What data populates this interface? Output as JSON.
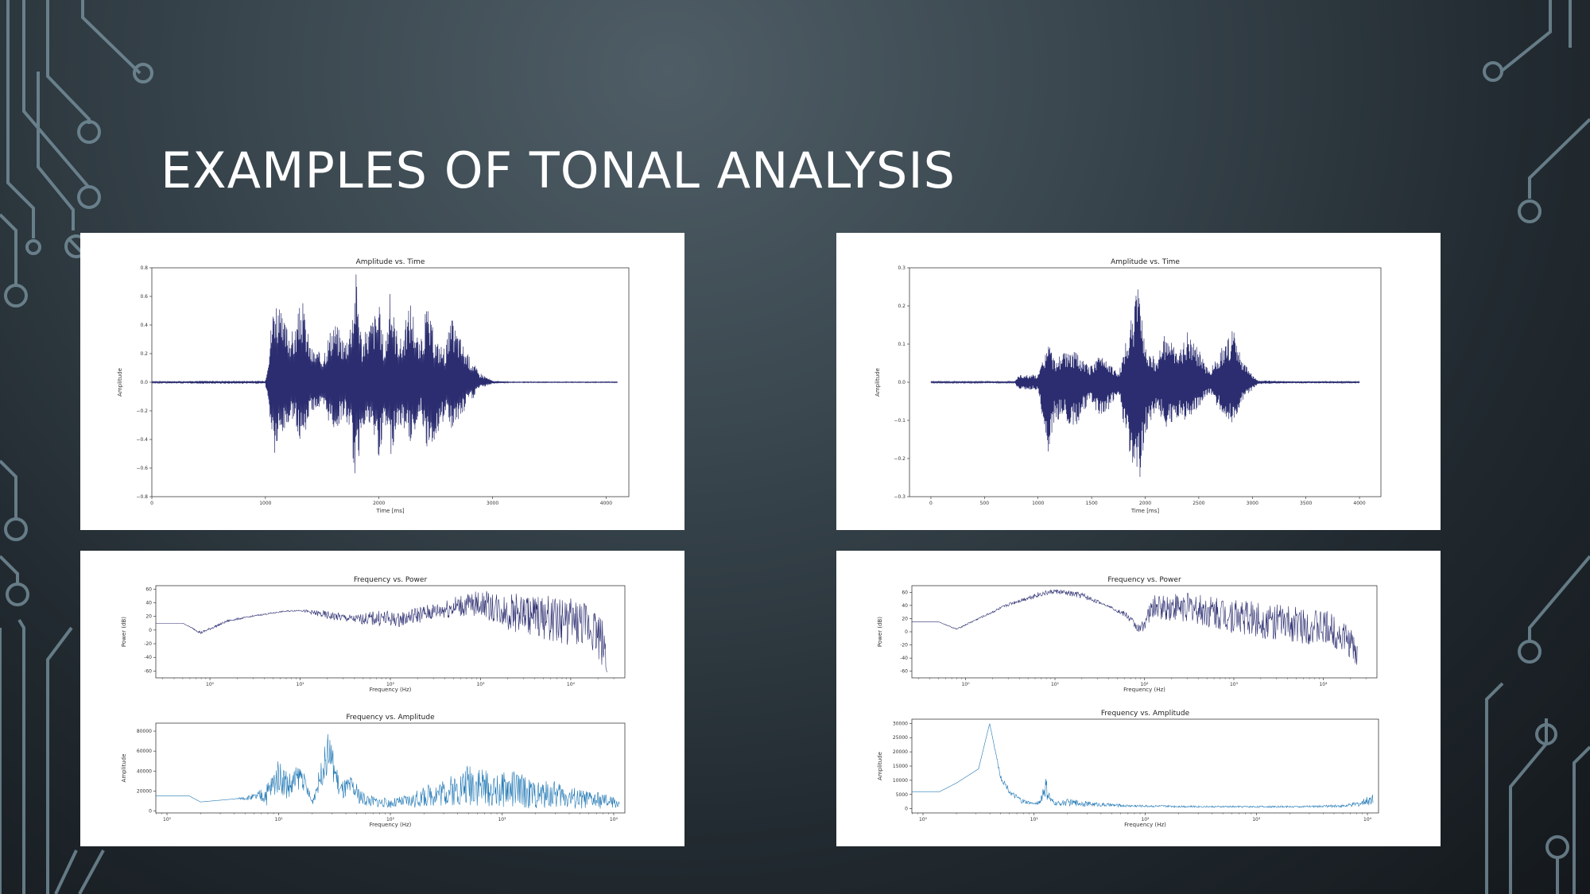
{
  "slide": {
    "title": "EXAMPLES OF TONAL ANALYSIS",
    "accent_color": "#7d98a5",
    "plot_navy": "#2b2d70",
    "plot_blue": "#1f77b4"
  },
  "chart_data": [
    {
      "type": "line",
      "title": "Amplitude vs. Time",
      "xlabel": "Time [ms]",
      "ylabel": "Amplitude",
      "xlim": [
        0,
        4200
      ],
      "ylim": [
        -0.8,
        0.8
      ],
      "xticks": [
        0,
        1000,
        2000,
        3000,
        4000
      ],
      "yticks": [
        -0.8,
        -0.6,
        -0.4,
        -0.2,
        0.0,
        0.2,
        0.4,
        0.6,
        0.8
      ],
      "xtick_labels": [
        "0",
        "1000",
        "2000",
        "3000",
        "4000"
      ],
      "ytick_labels": [
        "−0.8",
        "−0.6",
        "−0.4",
        "−0.2",
        "0.0",
        "0.2",
        "0.4",
        "0.6",
        "0.8"
      ],
      "envelope": {
        "x": [
          0,
          400,
          1000,
          1080,
          1150,
          1250,
          1320,
          1400,
          1500,
          1600,
          1700,
          1750,
          1800,
          1850,
          1930,
          2000,
          2050,
          2100,
          2150,
          2200,
          2280,
          2360,
          2420,
          2500,
          2580,
          2640,
          2700,
          2780,
          2830,
          2870,
          3000,
          3150,
          4100
        ],
        "upper": [
          0.005,
          0.01,
          0.01,
          0.65,
          0.45,
          0.35,
          0.6,
          0.25,
          0.2,
          0.45,
          0.3,
          0.45,
          0.8,
          0.3,
          0.45,
          0.55,
          0.25,
          0.65,
          0.4,
          0.3,
          0.6,
          0.25,
          0.55,
          0.3,
          0.25,
          0.45,
          0.35,
          0.2,
          0.15,
          0.08,
          0.01,
          0.003,
          0.003
        ],
        "lower": [
          -0.005,
          -0.01,
          -0.01,
          -0.55,
          -0.4,
          -0.25,
          -0.45,
          -0.2,
          -0.2,
          -0.35,
          -0.25,
          -0.35,
          -0.8,
          -0.3,
          -0.35,
          -0.55,
          -0.25,
          -0.55,
          -0.35,
          -0.3,
          -0.45,
          -0.2,
          -0.45,
          -0.4,
          -0.25,
          -0.35,
          -0.3,
          -0.15,
          -0.12,
          -0.05,
          -0.01,
          -0.003,
          -0.003
        ]
      }
    },
    {
      "type": "line",
      "title": "Amplitude vs. Time",
      "xlabel": "Time [ms]",
      "ylabel": "Amplitude",
      "xlim": [
        -200,
        4200
      ],
      "ylim": [
        -0.3,
        0.3
      ],
      "xticks": [
        0,
        500,
        1000,
        1500,
        2000,
        2500,
        3000,
        3500,
        4000
      ],
      "yticks": [
        -0.3,
        -0.2,
        -0.1,
        0.0,
        0.1,
        0.2,
        0.3
      ],
      "xtick_labels": [
        "0",
        "500",
        "1000",
        "1500",
        "2000",
        "2500",
        "3000",
        "3500",
        "4000"
      ],
      "ytick_labels": [
        "−0.3",
        "−0.2",
        "−0.1",
        "0.0",
        "0.1",
        "0.2",
        "0.3"
      ],
      "envelope": {
        "x": [
          0,
          780,
          820,
          1000,
          1100,
          1150,
          1250,
          1350,
          1480,
          1600,
          1750,
          1880,
          1950,
          2000,
          2100,
          2200,
          2300,
          2400,
          2600,
          2750,
          2820,
          2900,
          3000,
          3050,
          3300,
          4000
        ],
        "upper": [
          0.002,
          0.002,
          0.02,
          0.02,
          0.11,
          0.06,
          0.08,
          0.08,
          0.04,
          0.08,
          0.02,
          0.18,
          0.28,
          0.1,
          0.06,
          0.14,
          0.07,
          0.14,
          0.03,
          0.11,
          0.14,
          0.06,
          0.02,
          0.005,
          0.003,
          0.002
        ],
        "lower": [
          -0.002,
          -0.002,
          -0.02,
          -0.02,
          -0.22,
          -0.1,
          -0.1,
          -0.12,
          -0.05,
          -0.1,
          -0.03,
          -0.24,
          -0.28,
          -0.14,
          -0.07,
          -0.12,
          -0.1,
          -0.1,
          -0.03,
          -0.1,
          -0.11,
          -0.05,
          -0.02,
          -0.005,
          -0.003,
          -0.002
        ]
      }
    },
    {
      "type": "line",
      "title": "Frequency vs. Power",
      "xlabel": "Frequency (Hz)",
      "ylabel": "Power (dB)",
      "xscale": "log",
      "xlim_log10": [
        -0.6,
        4.6
      ],
      "ylim": [
        -70,
        65
      ],
      "yticks": [
        -60,
        -40,
        -20,
        0,
        20,
        40,
        60
      ],
      "ytick_labels": [
        "-60",
        "-40",
        "-20",
        "0",
        "20",
        "40",
        "60"
      ],
      "xticks_log10": [
        0,
        1,
        2,
        3,
        4
      ],
      "xtick_labels": [
        "10⁰",
        "10¹",
        "10²",
        "10³",
        "10⁴"
      ],
      "envelope": {
        "x_log10": [
          -0.6,
          -0.3,
          -0.1,
          0.2,
          0.5,
          0.8,
          1.0,
          1.3,
          1.6,
          1.9,
          2.1,
          2.3,
          2.5,
          2.7,
          3.0,
          3.3,
          3.6,
          3.9,
          4.1,
          4.25,
          4.35,
          4.4
        ],
        "upper": [
          10,
          10,
          -2,
          15,
          22,
          28,
          30,
          28,
          22,
          30,
          25,
          35,
          40,
          50,
          58,
          55,
          52,
          48,
          45,
          40,
          20,
          5
        ],
        "lower": [
          10,
          10,
          -6,
          12,
          20,
          26,
          28,
          15,
          10,
          5,
          5,
          10,
          15,
          18,
          20,
          0,
          -10,
          -20,
          -25,
          -30,
          -55,
          -70
        ]
      }
    },
    {
      "type": "line",
      "title": "Frequency vs. Power",
      "xlabel": "Frequency (Hz)",
      "ylabel": "Power (dB)",
      "xscale": "log",
      "xlim_log10": [
        -0.6,
        4.6
      ],
      "ylim": [
        -70,
        70
      ],
      "yticks": [
        -60,
        -40,
        -20,
        0,
        20,
        40,
        60
      ],
      "ytick_labels": [
        "-60",
        "-40",
        "-20",
        "0",
        "20",
        "40",
        "60"
      ],
      "xticks_log10": [
        0,
        1,
        2,
        3,
        4
      ],
      "xtick_labels": [
        "10⁰",
        "10¹",
        "10²",
        "10³",
        "10⁴"
      ],
      "envelope": {
        "x_log10": [
          -0.6,
          -0.3,
          -0.1,
          0.2,
          0.5,
          0.8,
          1.0,
          1.3,
          1.6,
          1.8,
          1.95,
          2.1,
          2.3,
          2.5,
          2.7,
          2.9,
          3.1,
          3.3,
          3.6,
          3.9,
          4.1,
          4.3,
          4.38
        ],
        "upper": [
          15,
          15,
          5,
          25,
          45,
          60,
          65,
          60,
          40,
          30,
          10,
          55,
          60,
          60,
          55,
          55,
          50,
          45,
          40,
          35,
          30,
          10,
          -10
        ],
        "lower": [
          15,
          15,
          3,
          22,
          40,
          52,
          58,
          50,
          38,
          20,
          -5,
          20,
          15,
          15,
          5,
          0,
          -5,
          -10,
          -15,
          -20,
          -25,
          -40,
          -65
        ]
      }
    },
    {
      "type": "line",
      "title": "Frequency vs. Amplitude",
      "xlabel": "Frequency (Hz)",
      "ylabel": "Amplitude",
      "xscale": "log",
      "xlim_log10": [
        -0.1,
        4.1
      ],
      "ylim": [
        -2000,
        88000
      ],
      "yticks": [
        0,
        20000,
        40000,
        60000,
        80000
      ],
      "ytick_labels": [
        "0",
        "20000",
        "40000",
        "60000",
        "80000"
      ],
      "xticks_log10": [
        0,
        1,
        2,
        3,
        4
      ],
      "xtick_labels": [
        "10⁰",
        "10¹",
        "10²",
        "10³",
        "10⁴"
      ],
      "envelope": {
        "x_log10": [
          -0.1,
          0.2,
          0.3,
          0.6,
          0.8,
          0.9,
          1.0,
          1.1,
          1.2,
          1.3,
          1.45,
          1.55,
          1.65,
          1.75,
          1.85,
          2.0,
          2.2,
          2.4,
          2.6,
          2.75,
          2.9,
          3.1,
          3.3,
          3.5,
          3.7,
          3.9,
          4.05
        ],
        "upper": [
          15000,
          15000,
          9000,
          12000,
          18000,
          30000,
          52000,
          40000,
          48000,
          12000,
          82000,
          30000,
          35000,
          20000,
          15000,
          12000,
          18000,
          30000,
          38000,
          55000,
          35000,
          42000,
          30000,
          30000,
          22000,
          18000,
          12000
        ],
        "lower": [
          15000,
          15000,
          9000,
          12000,
          10000,
          5000,
          20000,
          8000,
          25000,
          5000,
          40000,
          10000,
          12000,
          5000,
          4000,
          3000,
          3000,
          5000,
          5000,
          5000,
          4000,
          3000,
          2500,
          2500,
          2000,
          2000,
          3000
        ]
      }
    },
    {
      "type": "line",
      "title": "Frequency vs. Amplitude",
      "xlabel": "Frequency (Hz)",
      "ylabel": "Amplitude",
      "xscale": "log",
      "xlim_log10": [
        -0.1,
        4.1
      ],
      "ylim": [
        -1500,
        31500
      ],
      "yticks": [
        0,
        5000,
        10000,
        15000,
        20000,
        25000,
        30000
      ],
      "ytick_labels": [
        "0",
        "5000",
        "10000",
        "15000",
        "20000",
        "25000",
        "30000"
      ],
      "xticks_log10": [
        0,
        1,
        2,
        3,
        4
      ],
      "xtick_labels": [
        "10⁰",
        "10¹",
        "10²",
        "10³",
        "10⁴"
      ],
      "envelope": {
        "x_log10": [
          -0.1,
          0.15,
          0.3,
          0.5,
          0.6,
          0.7,
          0.8,
          0.9,
          1.0,
          1.05,
          1.1,
          1.15,
          1.2,
          1.3,
          1.5,
          1.8,
          2.2,
          2.6,
          3.0,
          3.4,
          3.8,
          3.95,
          4.05
        ],
        "upper": [
          6000,
          6000,
          9000,
          14000,
          30000,
          12000,
          6000,
          3500,
          2000,
          3000,
          12000,
          4000,
          2500,
          3500,
          2500,
          1500,
          1200,
          1000,
          1000,
          1000,
          1500,
          3000,
          6000
        ],
        "lower": [
          6000,
          6000,
          9000,
          14000,
          30000,
          10000,
          4000,
          1500,
          1500,
          1500,
          3000,
          1500,
          1000,
          1000,
          800,
          600,
          500,
          400,
          400,
          400,
          500,
          800,
          1500
        ]
      }
    }
  ]
}
